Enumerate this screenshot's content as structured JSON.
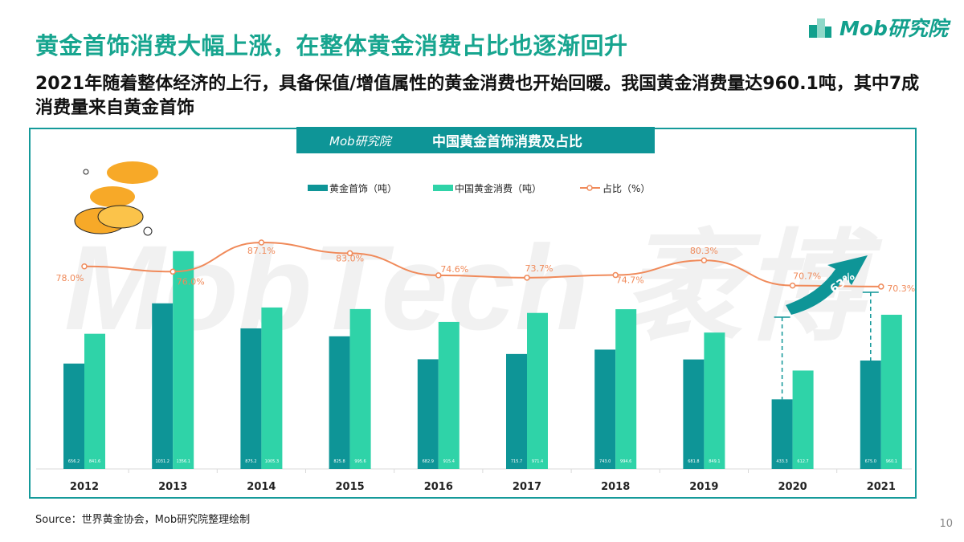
{
  "header": {
    "title": "黄金首饰消费大幅上涨，在整体黄金消费占比也逐渐回升",
    "subtitle": "2021年随着整体经济的上行，具备保值/增值属性的黄金消费也开始回暖。我国黄金消费量达960.1吨，其中7成消费量来自黄金首饰",
    "logo_text": "Mob研究院"
  },
  "chart_data": {
    "type": "bar",
    "title": "中国黄金首饰消费及占比",
    "title_logo": "Mob研究院",
    "categories": [
      "2012",
      "2013",
      "2014",
      "2015",
      "2016",
      "2017",
      "2018",
      "2019",
      "2020",
      "2021"
    ],
    "series": [
      {
        "name": "黄金首饰（吨）",
        "type": "bar",
        "color": "#0e9597",
        "values": [
          656.2,
          1031.2,
          875.2,
          825.8,
          682.9,
          715.7,
          743.0,
          681.8,
          433.3,
          675.0
        ]
      },
      {
        "name": "中国黄金消费（吨）",
        "type": "bar",
        "color": "#2fd3a8",
        "values": [
          841.6,
          1356.1,
          1005.3,
          995.6,
          915.4,
          971.4,
          994.6,
          849.1,
          612.7,
          960.1
        ]
      },
      {
        "name": "占比（%）",
        "type": "line",
        "color": "#f08a5a",
        "values": [
          78.0,
          76.0,
          87.1,
          83.0,
          74.6,
          73.7,
          74.7,
          80.3,
          70.7,
          70.3
        ]
      }
    ],
    "legend": "top-center",
    "annotation": "63%",
    "watermark": "MobTech 袤博",
    "grid": false
  },
  "footer": {
    "source": "Source：世界黄金协会，Mob研究院整理绘制",
    "page": "10"
  }
}
